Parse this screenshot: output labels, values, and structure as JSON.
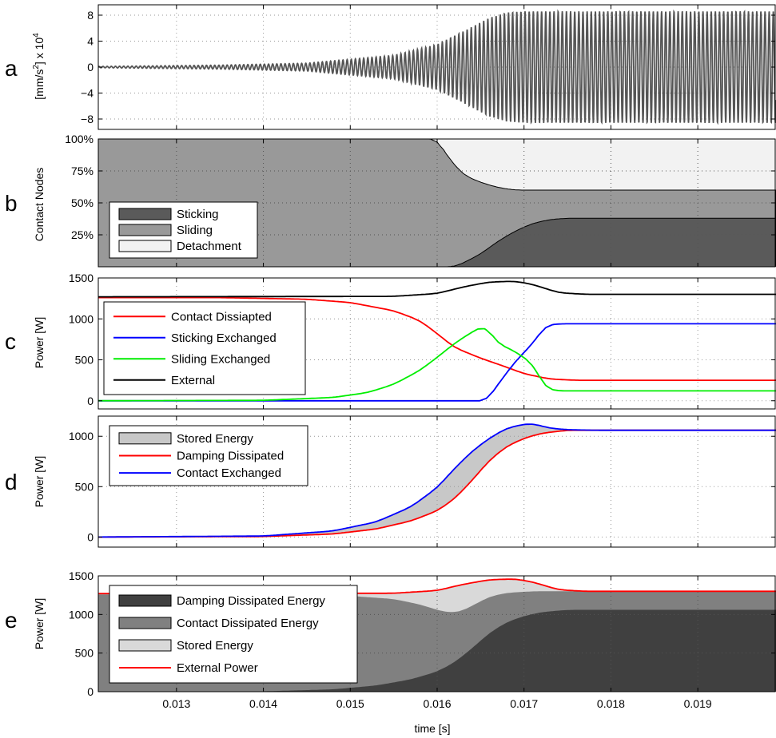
{
  "chart_data": [
    {
      "panel": "a",
      "type": "line",
      "ylabel_parts": [
        "[mm/s",
        "2",
        "] x 10",
        "4"
      ],
      "xlim": [
        0.0121,
        0.0199
      ],
      "ylim": [
        -9.6,
        9.6
      ],
      "yticks": [
        8,
        4,
        0,
        -4,
        -8
      ],
      "ytick_labels": [
        "8",
        "4",
        "0",
        "−4",
        "−8"
      ],
      "grid": "dotted",
      "signal": {
        "frequency_hz": 21000,
        "envelope_t": [
          0.0121,
          0.0135,
          0.0145,
          0.0155,
          0.016,
          0.0163,
          0.0166,
          0.0168,
          0.017,
          0.0199
        ],
        "envelope_amp": [
          0.1,
          0.3,
          0.6,
          1.8,
          3.5,
          5.5,
          7.6,
          8.4,
          8.6,
          8.6
        ],
        "baseline_shift": 0
      },
      "color": "#555555"
    },
    {
      "panel": "b",
      "type": "area",
      "ylabel": "Contact Nodes",
      "xlim": [
        0.0121,
        0.0199
      ],
      "ylim": [
        0,
        100
      ],
      "yticks": [
        25,
        50,
        75,
        100
      ],
      "ytick_labels": [
        "25%",
        "50%",
        "75%",
        "100%"
      ],
      "grid": "dotted",
      "legend_position": "bottom-left",
      "series": [
        {
          "name": "Sticking",
          "color": "#5a5a5a",
          "x": [
            0.0121,
            0.01595,
            0.0161,
            0.0162,
            0.0163,
            0.0165,
            0.0167,
            0.0169,
            0.0171,
            0.0173,
            0.0175,
            0.0199
          ],
          "values": [
            0,
            0,
            0,
            0,
            3,
            10,
            20,
            28,
            34,
            37,
            38,
            38
          ]
        },
        {
          "name": "Sliding",
          "color": "#999999",
          "x": [
            0.0121,
            0.01595,
            0.016,
            0.0161,
            0.0162,
            0.0163,
            0.0165,
            0.0167,
            0.0169,
            0.0171,
            0.0173,
            0.0175,
            0.0199
          ],
          "values": [
            100,
            100,
            100,
            88,
            80,
            72,
            66,
            62,
            60,
            60,
            60,
            60,
            60
          ]
        },
        {
          "name": "Detachment",
          "color": "#f2f2f2",
          "x": [
            0.0121,
            0.0199
          ],
          "values": [
            100,
            100
          ]
        }
      ]
    },
    {
      "panel": "c",
      "type": "line",
      "ylabel": "Power [W]",
      "xlim": [
        0.0121,
        0.0199
      ],
      "ylim": [
        -100,
        1500
      ],
      "yticks": [
        0,
        500,
        1000,
        1500
      ],
      "ytick_labels": [
        "0",
        "500",
        "1000",
        "1500"
      ],
      "grid": "dotted",
      "legend_position": "left",
      "series": [
        {
          "name": "Contact Dissiapted",
          "color": "#ff0000",
          "x": [
            0.0121,
            0.0135,
            0.0145,
            0.015,
            0.0155,
            0.0158,
            0.016,
            0.0162,
            0.0165,
            0.0168,
            0.017,
            0.0173,
            0.0176,
            0.0199
          ],
          "values": [
            1260,
            1260,
            1240,
            1200,
            1100,
            980,
            820,
            650,
            520,
            410,
            330,
            265,
            250,
            250
          ]
        },
        {
          "name": "Sticking Exchanged",
          "color": "#0000ff",
          "x": [
            0.0121,
            0.0165,
            0.01657,
            0.0167,
            0.0169,
            0.0171,
            0.01725,
            0.0174,
            0.0199
          ],
          "values": [
            0,
            0,
            0,
            200,
            480,
            700,
            920,
            940,
            940
          ]
        },
        {
          "name": "Sliding Exchanged",
          "color": "#00ee00",
          "x": [
            0.0121,
            0.014,
            0.0148,
            0.0152,
            0.0155,
            0.0158,
            0.016,
            0.0162,
            0.0164,
            0.01655,
            0.0167,
            0.0169,
            0.0171,
            0.01725,
            0.0174,
            0.0199
          ],
          "values": [
            0,
            5,
            40,
            100,
            200,
            370,
            530,
            700,
            840,
            920,
            700,
            600,
            450,
            150,
            120,
            120
          ]
        },
        {
          "name": "External",
          "color": "#000000",
          "x": [
            0.0121,
            0.0155,
            0.016,
            0.0163,
            0.0166,
            0.0169,
            0.0171,
            0.0174,
            0.0177,
            0.0199
          ],
          "values": [
            1270,
            1275,
            1310,
            1390,
            1450,
            1460,
            1420,
            1320,
            1300,
            1300
          ]
        }
      ]
    },
    {
      "panel": "d",
      "type": "line",
      "ylabel": "Power [W]",
      "xlim": [
        0.0121,
        0.0199
      ],
      "ylim": [
        -100,
        1200
      ],
      "yticks": [
        0,
        500,
        1000
      ],
      "ytick_labels": [
        "0",
        "500",
        "1000"
      ],
      "grid": "dotted",
      "legend_position": "top-left",
      "fill_between": {
        "name": "Stored Energy",
        "color": "#c8c8c8"
      },
      "series": [
        {
          "name": "Damping Dissipated",
          "color": "#ff0000",
          "x": [
            0.0121,
            0.014,
            0.0148,
            0.0153,
            0.0157,
            0.016,
            0.0162,
            0.0164,
            0.0166,
            0.0168,
            0.017,
            0.0172,
            0.0175,
            0.0178,
            0.0199
          ],
          "values": [
            0,
            5,
            30,
            80,
            160,
            260,
            380,
            560,
            760,
            900,
            980,
            1030,
            1060,
            1060,
            1060
          ]
        },
        {
          "name": "Contact Exchanged",
          "color": "#0000ff",
          "x": [
            0.0121,
            0.014,
            0.0148,
            0.0153,
            0.0157,
            0.016,
            0.0162,
            0.0164,
            0.0166,
            0.0168,
            0.017,
            0.0171,
            0.0173,
            0.0175,
            0.0178,
            0.0199
          ],
          "values": [
            0,
            10,
            60,
            150,
            300,
            490,
            680,
            850,
            980,
            1080,
            1120,
            1125,
            1080,
            1065,
            1060,
            1060
          ]
        }
      ]
    },
    {
      "panel": "e",
      "type": "area",
      "ylabel": "Power [W]",
      "xlabel": "time [s]",
      "xlim": [
        0.0121,
        0.0199
      ],
      "ylim": [
        0,
        1500
      ],
      "xticks": [
        0.013,
        0.014,
        0.015,
        0.016,
        0.017,
        0.018,
        0.019
      ],
      "xtick_labels": [
        "0.013",
        "0.014",
        "0.015",
        "0.016",
        "0.017",
        "0.018",
        "0.019"
      ],
      "yticks": [
        0,
        500,
        1000,
        1500
      ],
      "ytick_labels": [
        "0",
        "500",
        "1000",
        "1500"
      ],
      "grid": "dotted",
      "legend_position": "bottom-left",
      "series": [
        {
          "name": "Damping Dissipated Energy",
          "color": "#404040",
          "x": [
            0.0121,
            0.014,
            0.0148,
            0.0153,
            0.0157,
            0.016,
            0.0162,
            0.0164,
            0.0166,
            0.0168,
            0.017,
            0.0172,
            0.0175,
            0.0178,
            0.0199
          ],
          "values": [
            0,
            5,
            30,
            80,
            160,
            260,
            380,
            560,
            760,
            900,
            980,
            1030,
            1060,
            1060,
            1060
          ]
        },
        {
          "name": "Contact Dissipated Energy",
          "color": "#808080",
          "x": [
            0.0121,
            0.0145,
            0.015,
            0.0155,
            0.0158,
            0.016,
            0.0161,
            0.01625,
            0.0164,
            0.0166,
            0.0168,
            0.0171,
            0.0175,
            0.0199
          ],
          "values": [
            1260,
            1255,
            1240,
            1200,
            1130,
            1060,
            1030,
            1030,
            1110,
            1230,
            1280,
            1300,
            1300,
            1300
          ]
        },
        {
          "name": "Stored Energy",
          "color": "#d9d9d9"
        },
        {
          "name": "External Power",
          "color": "#ff0000",
          "x": [
            0.0121,
            0.0155,
            0.016,
            0.0163,
            0.0166,
            0.0169,
            0.0171,
            0.0174,
            0.0177,
            0.0199
          ],
          "values": [
            1270,
            1275,
            1310,
            1390,
            1450,
            1460,
            1420,
            1320,
            1300,
            1300
          ]
        }
      ]
    }
  ]
}
